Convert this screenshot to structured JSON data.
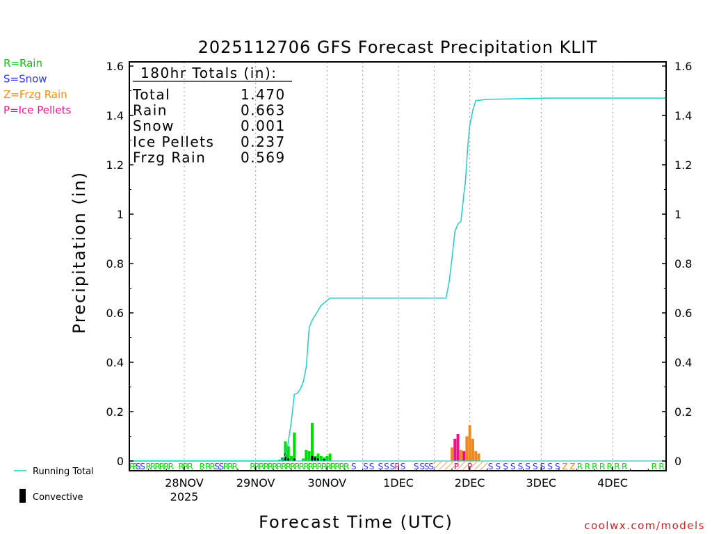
{
  "chart_data": {
    "type": "line",
    "title": "2025112706 GFS Forecast Precipitation KLIT",
    "ylabel": "Precipitation (in)",
    "xlabel": "Forecast Time (UTC)",
    "credit": "coolwx.com/models",
    "ylim": [
      -0.04,
      1.62
    ],
    "xlim_hours": [
      0,
      180
    ],
    "y_ticks": [
      0,
      0.2,
      0.4,
      0.6,
      0.8,
      1,
      1.2,
      1.4,
      1.6
    ],
    "y_tick_labels": [
      "0",
      "0.2",
      "0.4",
      "0.6",
      "0.8",
      "1",
      "1.2",
      "1.4",
      "1.6"
    ],
    "x_ticks": [
      {
        "hour": 18,
        "label": "28NOV",
        "sub": "2025"
      },
      {
        "hour": 42,
        "label": "29NOV",
        "sub": ""
      },
      {
        "hour": 66,
        "label": "30NOV",
        "sub": ""
      },
      {
        "hour": 90,
        "label": "1DEC",
        "sub": ""
      },
      {
        "hour": 114,
        "label": "2DEC",
        "sub": ""
      },
      {
        "hour": 138,
        "label": "3DEC",
        "sub": ""
      },
      {
        "hour": 162,
        "label": "4DEC",
        "sub": ""
      }
    ],
    "legend_left": [
      {
        "text": "R=Rain",
        "color": "#00cc00"
      },
      {
        "text": "S=Snow",
        "color": "#3333ff"
      },
      {
        "text": "Z=Frzg Rain",
        "color": "#ff8800"
      },
      {
        "text": "P=Ice Pellets",
        "color": "#ee1188"
      }
    ],
    "legend_bottom": {
      "running_total": "Running Total",
      "convective": "Convective"
    },
    "totals": {
      "header": "180hr Totals (in):",
      "rows": [
        {
          "label": "Total",
          "value": "1.470"
        },
        {
          "label": "Rain",
          "value": "0.663"
        },
        {
          "label": "Snow",
          "value": "0.001"
        },
        {
          "label": "Ice Pellets",
          "value": "0.237"
        },
        {
          "label": "Frzg Rain",
          "value": "0.569"
        }
      ]
    },
    "colors": {
      "rain": "#00dd00",
      "snow": "#3333ff",
      "frzg": "#ee8822",
      "ice": "#ee1188",
      "running": "#22cccc",
      "convective": "#000000"
    },
    "series": [
      {
        "name": "Running Total",
        "x": [
          0,
          50,
          51,
          52,
          52.5,
          53,
          53.5,
          54,
          55,
          56,
          57,
          58,
          59,
          60,
          61,
          62,
          63,
          64,
          65,
          66,
          67,
          68,
          69,
          70,
          71,
          75,
          90,
          100,
          105,
          106,
          107,
          108,
          109,
          110,
          111,
          112,
          112.5,
          113,
          113.5,
          114,
          115,
          116,
          120,
          140,
          160,
          180
        ],
        "y": [
          0,
          0,
          0.005,
          0.02,
          0.04,
          0.08,
          0.12,
          0.16,
          0.27,
          0.275,
          0.29,
          0.32,
          0.38,
          0.54,
          0.57,
          0.59,
          0.61,
          0.63,
          0.64,
          0.65,
          0.66,
          0.66,
          0.66,
          0.66,
          0.66,
          0.66,
          0.66,
          0.66,
          0.66,
          0.66,
          0.72,
          0.82,
          0.93,
          0.96,
          0.97,
          1.08,
          1.13,
          1.22,
          1.3,
          1.36,
          1.42,
          1.46,
          1.465,
          1.47,
          1.47,
          1.47
        ]
      },
      {
        "name": "Rain",
        "x": [
          50,
          51,
          52,
          53,
          54,
          55,
          58,
          59,
          60,
          61,
          62,
          63,
          64,
          65,
          66,
          67
        ],
        "values": [
          0.005,
          0.015,
          0.08,
          0.06,
          0.02,
          0.115,
          0.01,
          0.045,
          0.04,
          0.155,
          0.02,
          0.03,
          0.02,
          0.015,
          0.02,
          0.03
        ]
      },
      {
        "name": "Convective",
        "x": [
          51,
          52,
          53,
          55,
          61,
          62,
          63,
          65
        ],
        "values": [
          0.01,
          0.03,
          0.01,
          0.01,
          0.02,
          0.015,
          0.01,
          0.008
        ]
      },
      {
        "name": "Ice Pellets",
        "x": [
          109,
          110,
          112
        ],
        "values": [
          0.09,
          0.11,
          0.04
        ]
      },
      {
        "name": "Frzg Rain",
        "x": [
          108,
          111,
          113,
          114,
          115,
          116,
          117
        ],
        "values": [
          0.055,
          0.045,
          0.1,
          0.145,
          0.09,
          0.04,
          0.03
        ]
      }
    ],
    "ptype_strip": [
      {
        "x": 0.5,
        "t": "R",
        "c": "rain"
      },
      {
        "x": 1.5,
        "t": "R",
        "c": "rain"
      },
      {
        "x": 2.5,
        "t": "S",
        "c": "snow"
      },
      {
        "x": 4,
        "t": "S",
        "c": "snow"
      },
      {
        "x": 6,
        "t": "R",
        "c": "rain"
      },
      {
        "x": 7.5,
        "t": "R",
        "c": "rain"
      },
      {
        "x": 9,
        "t": "R",
        "c": "rain"
      },
      {
        "x": 10.5,
        "t": "R",
        "c": "rain"
      },
      {
        "x": 12,
        "t": "R",
        "c": "rain"
      },
      {
        "x": 13.5,
        "t": "R",
        "c": "rain"
      },
      {
        "x": 17,
        "t": "R",
        "c": "rain"
      },
      {
        "x": 18.5,
        "t": "R",
        "c": "rain"
      },
      {
        "x": 20,
        "t": "R",
        "c": "rain"
      },
      {
        "x": 24,
        "t": "R",
        "c": "rain"
      },
      {
        "x": 26,
        "t": "R",
        "c": "rain"
      },
      {
        "x": 27.5,
        "t": "R",
        "c": "rain"
      },
      {
        "x": 29,
        "t": "S",
        "c": "snow"
      },
      {
        "x": 30.5,
        "t": "S",
        "c": "snow"
      },
      {
        "x": 32,
        "t": "R",
        "c": "rain"
      },
      {
        "x": 33.5,
        "t": "R",
        "c": "rain"
      },
      {
        "x": 35,
        "t": "R",
        "c": "rain"
      },
      {
        "x": 41,
        "t": "R",
        "c": "rain"
      },
      {
        "x": 42.5,
        "t": "R",
        "c": "rain"
      },
      {
        "x": 44,
        "t": "R",
        "c": "rain"
      },
      {
        "x": 45.5,
        "t": "R",
        "c": "rain"
      },
      {
        "x": 47,
        "t": "R",
        "c": "rain"
      },
      {
        "x": 48.5,
        "t": "R",
        "c": "rain"
      },
      {
        "x": 50,
        "t": "R",
        "c": "rain"
      },
      {
        "x": 51.5,
        "t": "R",
        "c": "rain"
      },
      {
        "x": 53,
        "t": "R",
        "c": "rain"
      },
      {
        "x": 54.5,
        "t": "R",
        "c": "rain"
      },
      {
        "x": 56,
        "t": "R",
        "c": "rain"
      },
      {
        "x": 57.5,
        "t": "R",
        "c": "rain"
      },
      {
        "x": 59,
        "t": "R",
        "c": "rain"
      },
      {
        "x": 60.5,
        "t": "R",
        "c": "rain"
      },
      {
        "x": 62,
        "t": "R",
        "c": "rain"
      },
      {
        "x": 63.5,
        "t": "R",
        "c": "rain"
      },
      {
        "x": 65,
        "t": "R",
        "c": "rain"
      },
      {
        "x": 66.5,
        "t": "R",
        "c": "rain"
      },
      {
        "x": 68,
        "t": "R",
        "c": "rain"
      },
      {
        "x": 69.5,
        "t": "R",
        "c": "rain"
      },
      {
        "x": 71,
        "t": "R",
        "c": "rain"
      },
      {
        "x": 72.5,
        "t": "R",
        "c": "rain"
      },
      {
        "x": 75,
        "t": "S",
        "c": "snow"
      },
      {
        "x": 79,
        "t": "S",
        "c": "snow"
      },
      {
        "x": 81,
        "t": "S",
        "c": "snow"
      },
      {
        "x": 84,
        "t": "S",
        "c": "snow"
      },
      {
        "x": 86,
        "t": "S",
        "c": "snow"
      },
      {
        "x": 88,
        "t": "S",
        "c": "snow"
      },
      {
        "x": 89.5,
        "t": "P",
        "c": "ice"
      },
      {
        "x": 91.5,
        "t": "S",
        "c": "snow"
      },
      {
        "x": 96,
        "t": "S",
        "c": "snow"
      },
      {
        "x": 98,
        "t": "S",
        "c": "snow"
      },
      {
        "x": 99.5,
        "t": "S",
        "c": "snow"
      },
      {
        "x": 101,
        "t": "S",
        "c": "snow"
      },
      {
        "x": 109.5,
        "t": "P",
        "c": "ice"
      },
      {
        "x": 114,
        "t": "P",
        "c": "ice"
      },
      {
        "x": 121,
        "t": "S",
        "c": "snow"
      },
      {
        "x": 123.5,
        "t": "S",
        "c": "snow"
      },
      {
        "x": 126,
        "t": "S",
        "c": "snow"
      },
      {
        "x": 128.5,
        "t": "S",
        "c": "snow"
      },
      {
        "x": 131,
        "t": "S",
        "c": "snow"
      },
      {
        "x": 133.5,
        "t": "S",
        "c": "snow"
      },
      {
        "x": 136,
        "t": "S",
        "c": "snow"
      },
      {
        "x": 138.5,
        "t": "S",
        "c": "snow"
      },
      {
        "x": 141,
        "t": "S",
        "c": "snow"
      },
      {
        "x": 143.5,
        "t": "S",
        "c": "snow"
      },
      {
        "x": 146,
        "t": "Z",
        "c": "frzg"
      },
      {
        "x": 148.5,
        "t": "Z",
        "c": "frzg"
      },
      {
        "x": 151,
        "t": "R",
        "c": "rain"
      },
      {
        "x": 153.5,
        "t": "R",
        "c": "rain"
      },
      {
        "x": 156,
        "t": "R",
        "c": "rain"
      },
      {
        "x": 158.5,
        "t": "R",
        "c": "rain"
      },
      {
        "x": 161,
        "t": "R",
        "c": "rain"
      },
      {
        "x": 163.5,
        "t": "R",
        "c": "rain"
      },
      {
        "x": 166,
        "t": "R",
        "c": "rain"
      },
      {
        "x": 176,
        "t": "R",
        "c": "rain"
      },
      {
        "x": 178.5,
        "t": "R",
        "c": "rain"
      }
    ],
    "hatch_range_hours": [
      102,
      120
    ]
  }
}
